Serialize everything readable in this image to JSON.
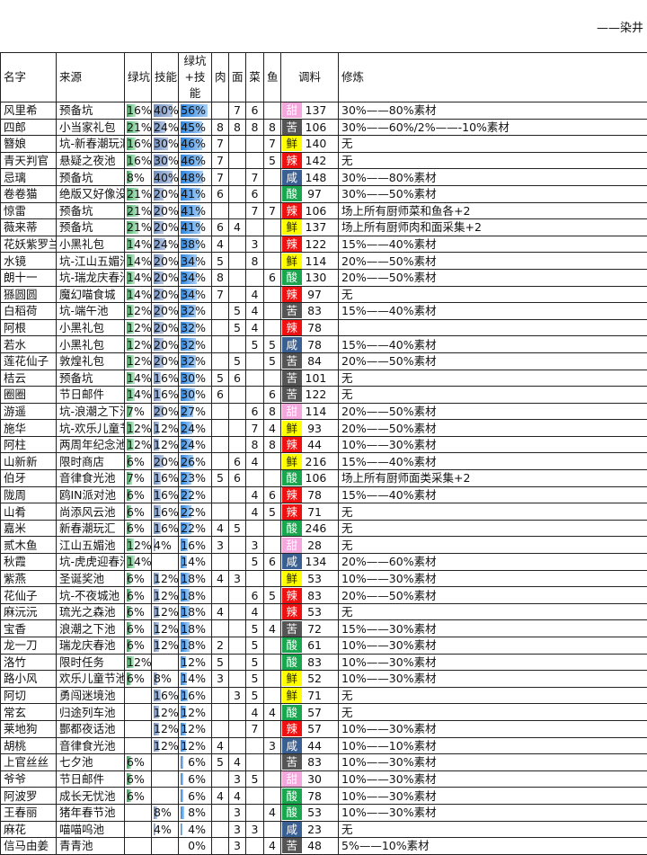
{
  "author": "——染井",
  "header": {
    "name": "名字",
    "source": "来源",
    "green": "绿坑",
    "skill": "技能",
    "total": "绿坑+技能",
    "meat": "肉",
    "noodle": "面",
    "veg": "菜",
    "fish": "鱼",
    "seasoning": "调料",
    "training": "修炼"
  },
  "seasoning_colors": {
    "甜": "#f4a7dc",
    "苦": "#555555",
    "鲜": "#ffff00",
    "辣": "#ee1111",
    "咸": "#3a5f92",
    "酸": "#1aa64e"
  },
  "rows": [
    {
      "name": "风里希",
      "source": "预备坑",
      "green": "16%",
      "skill": "40%",
      "total": "56%",
      "meat": "",
      "noodle": "7",
      "veg": "6",
      "fish": "",
      "seasoning": "甜",
      "value": "137",
      "training": "30%——80%素材"
    },
    {
      "name": "四郎",
      "source": "小当家礼包",
      "green": "21%",
      "skill": "24%",
      "total": "45%",
      "meat": "8",
      "noodle": "8",
      "veg": "8",
      "fish": "8",
      "seasoning": "苦",
      "value": "106",
      "training": "30%——60%/2%——-10%素材"
    },
    {
      "name": "簪娘",
      "source": "坑-新春潮玩汇",
      "green": "16%",
      "skill": "30%",
      "total": "46%",
      "meat": "7",
      "noodle": "",
      "veg": "",
      "fish": "7",
      "seasoning": "鲜",
      "value": "140",
      "training": "无"
    },
    {
      "name": "青天判官",
      "source": "悬疑之夜池",
      "green": "16%",
      "skill": "30%",
      "total": "46%",
      "meat": "7",
      "noodle": "",
      "veg": "",
      "fish": "5",
      "seasoning": "辣",
      "value": "142",
      "training": "无"
    },
    {
      "name": "忌璃",
      "source": "预备坑",
      "green": "8%",
      "skill": "40%",
      "total": "48%",
      "meat": "7",
      "noodle": "",
      "veg": "7",
      "fish": "",
      "seasoning": "咸",
      "value": "148",
      "training": "30%——80%素材"
    },
    {
      "name": "卷卷猫",
      "source": "绝版又好像没绝",
      "green": "21%",
      "skill": "20%",
      "total": "41%",
      "meat": "6",
      "noodle": "",
      "veg": "6",
      "fish": "",
      "seasoning": "酸",
      "value": "97",
      "training": "30%——50%素材"
    },
    {
      "name": "惊雷",
      "source": "预备坑",
      "green": "21%",
      "skill": "20%",
      "total": "41%",
      "meat": "",
      "noodle": "",
      "veg": "7",
      "fish": "7",
      "seasoning": "辣",
      "value": "106",
      "training": "场上所有厨师菜和鱼各+2"
    },
    {
      "name": "薇来蒂",
      "source": "预备坑",
      "green": "21%",
      "skill": "20%",
      "total": "41%",
      "meat": "6",
      "noodle": "4",
      "veg": "",
      "fish": "",
      "seasoning": "鲜",
      "value": "137",
      "training": "场上所有厨师肉和面采集+2"
    },
    {
      "name": "花妖紫罗兰",
      "source": "小黑礼包",
      "green": "14%",
      "skill": "24%",
      "total": "38%",
      "meat": "4",
      "noodle": "",
      "veg": "3",
      "fish": "",
      "seasoning": "辣",
      "value": "122",
      "training": "15%——40%素材"
    },
    {
      "name": "水镜",
      "source": "坑-江山五媚池",
      "green": "14%",
      "skill": "20%",
      "total": "34%",
      "meat": "5",
      "noodle": "",
      "veg": "8",
      "fish": "",
      "seasoning": "鲜",
      "value": "114",
      "training": "20%——50%素材"
    },
    {
      "name": "朗十一",
      "source": "坑-瑞龙庆春池",
      "green": "14%",
      "skill": "20%",
      "total": "34%",
      "meat": "8",
      "noodle": "",
      "veg": "",
      "fish": "6",
      "seasoning": "酸",
      "value": "130",
      "training": "20%——50%素材"
    },
    {
      "name": "猻圆圆",
      "source": "魔幻喵食城",
      "green": "14%",
      "skill": "20%",
      "total": "34%",
      "meat": "7",
      "noodle": "",
      "veg": "4",
      "fish": "",
      "seasoning": "辣",
      "value": "97",
      "training": "无"
    },
    {
      "name": "白稻荷",
      "source": "坑-端午池",
      "green": "12%",
      "skill": "20%",
      "total": "32%",
      "meat": "",
      "noodle": "5",
      "veg": "4",
      "fish": "",
      "seasoning": "苦",
      "value": "83",
      "training": "15%——40%素材"
    },
    {
      "name": "阿根",
      "source": "小黑礼包",
      "green": "12%",
      "skill": "20%",
      "total": "32%",
      "meat": "",
      "noodle": "5",
      "veg": "4",
      "fish": "",
      "seasoning": "辣",
      "value": "78",
      "training": ""
    },
    {
      "name": "若水",
      "source": "小黑礼包",
      "green": "12%",
      "skill": "20%",
      "total": "32%",
      "meat": "",
      "noodle": "",
      "veg": "5",
      "fish": "5",
      "seasoning": "咸",
      "value": "78",
      "training": "15%——40%素材"
    },
    {
      "name": "莲花仙子",
      "source": "敦煌礼包",
      "green": "12%",
      "skill": "20%",
      "total": "32%",
      "meat": "",
      "noodle": "5",
      "veg": "",
      "fish": "5",
      "seasoning": "苦",
      "value": "84",
      "training": "20%——50%素材"
    },
    {
      "name": "桔云",
      "source": "预备坑",
      "green": "14%",
      "skill": "16%",
      "total": "30%",
      "meat": "5",
      "noodle": "6",
      "veg": "",
      "fish": "",
      "seasoning": "苦",
      "value": "101",
      "training": "无"
    },
    {
      "name": "圈圈",
      "source": "节日邮件",
      "green": "14%",
      "skill": "16%",
      "total": "30%",
      "meat": "6",
      "noodle": "",
      "veg": "",
      "fish": "6",
      "seasoning": "苦",
      "value": "122",
      "training": "无"
    },
    {
      "name": "游遥",
      "source": "坑-浪潮之下池",
      "green": "7%",
      "skill": "20%",
      "total": "27%",
      "meat": "",
      "noodle": "",
      "veg": "6",
      "fish": "8",
      "seasoning": "甜",
      "value": "114",
      "training": "20%——50%素材"
    },
    {
      "name": "施华",
      "source": "坑-欢乐儿童节池",
      "green": "12%",
      "skill": "12%",
      "total": "24%",
      "meat": "",
      "noodle": "",
      "veg": "7",
      "fish": "4",
      "seasoning": "鲜",
      "value": "93",
      "training": "20%——50%素材"
    },
    {
      "name": "阿柱",
      "source": "两周年纪念池",
      "green": "12%",
      "skill": "12%",
      "total": "24%",
      "meat": "",
      "noodle": "",
      "veg": "8",
      "fish": "8",
      "seasoning": "辣",
      "value": "44",
      "training": "10%——30%素材"
    },
    {
      "name": "山新新",
      "source": "限时商店",
      "green": "6%",
      "skill": "20%",
      "total": "26%",
      "meat": "",
      "noodle": "6",
      "veg": "4",
      "fish": "",
      "seasoning": "鲜",
      "value": "216",
      "training": "15%——40%素材"
    },
    {
      "name": "伯牙",
      "source": "音律食光池",
      "green": "7%",
      "skill": "16%",
      "total": "23%",
      "meat": "5",
      "noodle": "6",
      "veg": "",
      "fish": "",
      "seasoning": "酸",
      "value": "106",
      "training": "场上所有厨师面类采集+2"
    },
    {
      "name": "陇周",
      "source": "鸥IN派对池",
      "green": "6%",
      "skill": "16%",
      "total": "22%",
      "meat": "",
      "noodle": "",
      "veg": "4",
      "fish": "6",
      "seasoning": "辣",
      "value": "78",
      "training": "15%——40%素材"
    },
    {
      "name": "山肴",
      "source": "尚添风云池",
      "green": "6%",
      "skill": "16%",
      "total": "22%",
      "meat": "",
      "noodle": "",
      "veg": "4",
      "fish": "5",
      "seasoning": "辣",
      "value": "71",
      "training": "无"
    },
    {
      "name": "嘉米",
      "source": "新春潮玩汇",
      "green": "6%",
      "skill": "16%",
      "total": "22%",
      "meat": "4",
      "noodle": "5",
      "veg": "",
      "fish": "",
      "seasoning": "酸",
      "value": "246",
      "training": "无"
    },
    {
      "name": "贰木鱼",
      "source": "江山五媚池",
      "green": "12%",
      "skill": "4%",
      "total": "16%",
      "meat": "3",
      "noodle": "",
      "veg": "3",
      "fish": "",
      "seasoning": "甜",
      "value": "28",
      "training": "无"
    },
    {
      "name": "秋霞",
      "source": "坑-虎虎迎春池",
      "green": "14%",
      "skill": "",
      "total": "14%",
      "meat": "",
      "noodle": "",
      "veg": "5",
      "fish": "6",
      "seasoning": "咸",
      "value": "134",
      "training": "20%——60%素材"
    },
    {
      "name": "紫燕",
      "source": "圣诞奖池",
      "green": "6%",
      "skill": "12%",
      "total": "18%",
      "meat": "4",
      "noodle": "3",
      "veg": "",
      "fish": "",
      "seasoning": "鲜",
      "value": "53",
      "training": "10%——30%素材"
    },
    {
      "name": "花仙子",
      "source": "坑-不夜城池",
      "green": "6%",
      "skill": "12%",
      "total": "18%",
      "meat": "",
      "noodle": "",
      "veg": "6",
      "fish": "5",
      "seasoning": "辣",
      "value": "83",
      "training": "20%——50%素材"
    },
    {
      "name": "麻沅沅",
      "source": "琉光之森池",
      "green": "6%",
      "skill": "12%",
      "total": "18%",
      "meat": "4",
      "noodle": "",
      "veg": "4",
      "fish": "",
      "seasoning": "辣",
      "value": "53",
      "training": "无"
    },
    {
      "name": "宝香",
      "source": "浪潮之下池",
      "green": "6%",
      "skill": "12%",
      "total": "18%",
      "meat": "",
      "noodle": "",
      "veg": "5",
      "fish": "4",
      "seasoning": "苦",
      "value": "72",
      "training": "15%——30%素材"
    },
    {
      "name": "龙一刀",
      "source": "瑞龙庆春池",
      "green": "6%",
      "skill": "12%",
      "total": "18%",
      "meat": "2",
      "noodle": "",
      "veg": "5",
      "fish": "",
      "seasoning": "酸",
      "value": "61",
      "training": "10%——30%素材"
    },
    {
      "name": "洛竹",
      "source": "限时任务",
      "green": "12%",
      "skill": "",
      "total": "12%",
      "meat": "5",
      "noodle": "",
      "veg": "5",
      "fish": "",
      "seasoning": "酸",
      "value": "83",
      "training": "10%——30%素材"
    },
    {
      "name": "路小风",
      "source": "欢乐儿童节池",
      "green": "6%",
      "skill": "8%",
      "total": "14%",
      "meat": "3",
      "noodle": "",
      "veg": "5",
      "fish": "",
      "seasoning": "鲜",
      "value": "52",
      "training": "10%——30%素材"
    },
    {
      "name": "阿切",
      "source": "勇闯迷境池",
      "green": "",
      "skill": "16%",
      "total": "16%",
      "meat": "",
      "noodle": "3",
      "veg": "5",
      "fish": "",
      "seasoning": "鲜",
      "value": "71",
      "training": "无"
    },
    {
      "name": "常玄",
      "source": "归途列车池",
      "green": "",
      "skill": "12%",
      "total": "12%",
      "meat": "",
      "noodle": "",
      "veg": "4",
      "fish": "4",
      "seasoning": "酸",
      "value": "57",
      "training": "无"
    },
    {
      "name": "莱地狗",
      "source": "酆都夜话池",
      "green": "",
      "skill": "12%",
      "total": "12%",
      "meat": "",
      "noodle": "",
      "veg": "7",
      "fish": "",
      "seasoning": "辣",
      "value": "57",
      "training": "10%——30%素材"
    },
    {
      "name": "胡桃",
      "source": "音律食光池",
      "green": "",
      "skill": "12%",
      "total": "12%",
      "meat": "4",
      "noodle": "",
      "veg": "",
      "fish": "3",
      "seasoning": "咸",
      "value": "44",
      "training": "10%——10%素材"
    },
    {
      "name": "上官丝丝",
      "source": "七夕池",
      "green": "6%",
      "skill": "",
      "total": "6%",
      "meat": "5",
      "noodle": "4",
      "veg": "",
      "fish": "",
      "seasoning": "苦",
      "value": "83",
      "training": "10%——30%素材"
    },
    {
      "name": "爷爷",
      "source": "节日邮件",
      "green": "6%",
      "skill": "",
      "total": "6%",
      "meat": "",
      "noodle": "3",
      "veg": "5",
      "fish": "",
      "seasoning": "甜",
      "value": "30",
      "training": "10%——30%素材"
    },
    {
      "name": "阿波罗",
      "source": "成长无忧池",
      "green": "6%",
      "skill": "",
      "total": "6%",
      "meat": "4",
      "noodle": "4",
      "veg": "",
      "fish": "",
      "seasoning": "酸",
      "value": "78",
      "training": "10%——30%素材"
    },
    {
      "name": "王春丽",
      "source": "猪年春节池",
      "green": "",
      "skill": "8%",
      "total": "8%",
      "meat": "",
      "noodle": "3",
      "veg": "",
      "fish": "4",
      "seasoning": "酸",
      "value": "53",
      "training": "10%——30%素材"
    },
    {
      "name": "麻花",
      "source": "喵喵呜池",
      "green": "",
      "skill": "4%",
      "total": "4%",
      "meat": "",
      "noodle": "3",
      "veg": "3",
      "fish": "",
      "seasoning": "咸",
      "value": "23",
      "training": "无"
    },
    {
      "name": "信马由姜",
      "source": "青青池",
      "green": "",
      "skill": "",
      "total": "0%",
      "meat": "",
      "noodle": "3",
      "veg": "",
      "fish": "4",
      "seasoning": "苦",
      "value": "48",
      "training": "5%——10%素材"
    }
  ]
}
